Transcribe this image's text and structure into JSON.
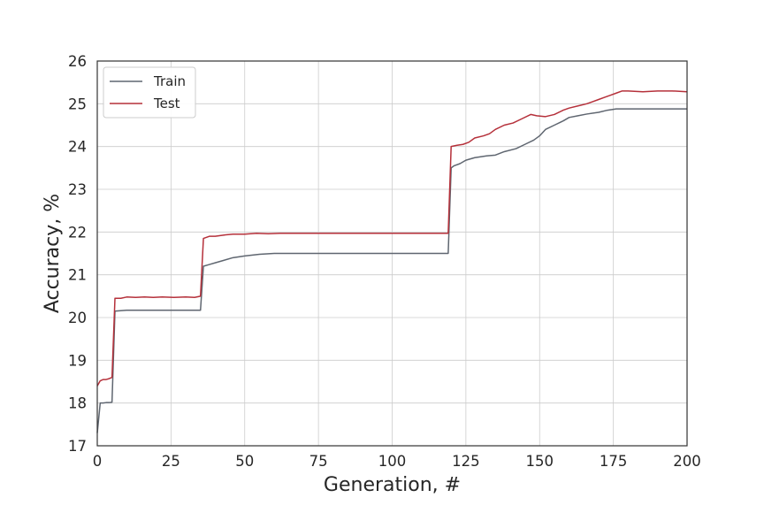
{
  "chart_data": {
    "type": "line",
    "title": "",
    "xlabel": "Generation, #",
    "ylabel": "Accuracy, %",
    "xlim": [
      0,
      200
    ],
    "ylim": [
      17,
      26
    ],
    "xticks": [
      0,
      25,
      50,
      75,
      100,
      125,
      150,
      175,
      200
    ],
    "yticks": [
      17,
      18,
      19,
      20,
      21,
      22,
      23,
      24,
      25,
      26
    ],
    "xtick_labels": [
      "0",
      "25",
      "50",
      "75",
      "100",
      "125",
      "150",
      "175",
      "200"
    ],
    "ytick_labels": [
      "17",
      "18",
      "19",
      "20",
      "21",
      "22",
      "23",
      "24",
      "25",
      "26"
    ],
    "grid": true,
    "legend_position": "upper-left",
    "series": [
      {
        "name": "Train",
        "color": "#5f6670",
        "points": [
          [
            0,
            17.3
          ],
          [
            1,
            18.0
          ],
          [
            2,
            18.0
          ],
          [
            3,
            18.01
          ],
          [
            4,
            18.01
          ],
          [
            5,
            18.02
          ],
          [
            6,
            20.15
          ],
          [
            10,
            20.17
          ],
          [
            20,
            20.17
          ],
          [
            30,
            20.17
          ],
          [
            35,
            20.17
          ],
          [
            36,
            21.2
          ],
          [
            38,
            21.24
          ],
          [
            40,
            21.28
          ],
          [
            43,
            21.34
          ],
          [
            46,
            21.4
          ],
          [
            50,
            21.44
          ],
          [
            55,
            21.48
          ],
          [
            60,
            21.5
          ],
          [
            70,
            21.5
          ],
          [
            100,
            21.5
          ],
          [
            119,
            21.5
          ],
          [
            120,
            23.5
          ],
          [
            121,
            23.55
          ],
          [
            123,
            23.6
          ],
          [
            125,
            23.68
          ],
          [
            128,
            23.74
          ],
          [
            132,
            23.78
          ],
          [
            135,
            23.8
          ],
          [
            138,
            23.88
          ],
          [
            142,
            23.95
          ],
          [
            145,
            24.05
          ],
          [
            148,
            24.15
          ],
          [
            150,
            24.25
          ],
          [
            152,
            24.4
          ],
          [
            155,
            24.5
          ],
          [
            158,
            24.6
          ],
          [
            160,
            24.68
          ],
          [
            163,
            24.72
          ],
          [
            166,
            24.76
          ],
          [
            170,
            24.8
          ],
          [
            173,
            24.85
          ],
          [
            176,
            24.88
          ],
          [
            180,
            24.88
          ],
          [
            190,
            24.88
          ],
          [
            200,
            24.88
          ]
        ]
      },
      {
        "name": "Test",
        "color": "#b5303a",
        "points": [
          [
            0,
            18.4
          ],
          [
            1,
            18.52
          ],
          [
            2,
            18.55
          ],
          [
            3,
            18.55
          ],
          [
            4,
            18.57
          ],
          [
            5,
            18.6
          ],
          [
            6,
            20.45
          ],
          [
            8,
            20.45
          ],
          [
            10,
            20.48
          ],
          [
            13,
            20.47
          ],
          [
            16,
            20.48
          ],
          [
            19,
            20.47
          ],
          [
            22,
            20.48
          ],
          [
            26,
            20.47
          ],
          [
            30,
            20.48
          ],
          [
            33,
            20.47
          ],
          [
            35,
            20.5
          ],
          [
            36,
            21.85
          ],
          [
            38,
            21.9
          ],
          [
            40,
            21.9
          ],
          [
            43,
            21.93
          ],
          [
            46,
            21.95
          ],
          [
            50,
            21.95
          ],
          [
            54,
            21.97
          ],
          [
            58,
            21.96
          ],
          [
            62,
            21.97
          ],
          [
            70,
            21.97
          ],
          [
            80,
            21.97
          ],
          [
            100,
            21.97
          ],
          [
            119,
            21.97
          ],
          [
            120,
            24.0
          ],
          [
            122,
            24.03
          ],
          [
            124,
            24.05
          ],
          [
            126,
            24.1
          ],
          [
            128,
            24.2
          ],
          [
            131,
            24.25
          ],
          [
            133,
            24.3
          ],
          [
            135,
            24.4
          ],
          [
            138,
            24.5
          ],
          [
            141,
            24.55
          ],
          [
            144,
            24.65
          ],
          [
            147,
            24.75
          ],
          [
            149,
            24.72
          ],
          [
            152,
            24.7
          ],
          [
            155,
            24.75
          ],
          [
            158,
            24.85
          ],
          [
            160,
            24.9
          ],
          [
            163,
            24.95
          ],
          [
            166,
            25.0
          ],
          [
            168,
            25.05
          ],
          [
            170,
            25.1
          ],
          [
            172,
            25.15
          ],
          [
            174,
            25.2
          ],
          [
            176,
            25.25
          ],
          [
            178,
            25.3
          ],
          [
            180,
            25.3
          ],
          [
            185,
            25.28
          ],
          [
            190,
            25.3
          ],
          [
            195,
            25.3
          ],
          [
            200,
            25.28
          ]
        ]
      }
    ]
  }
}
